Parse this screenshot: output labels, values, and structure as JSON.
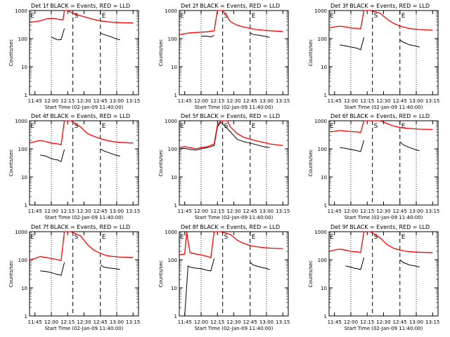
{
  "panel_defaults": {
    "ylabel": "Counts/sec",
    "xlabel": "Start Time (02-Jan-09 11:40:00)",
    "x_ticks": [
      "11:45",
      "12:00",
      "12:15",
      "12:30",
      "12:45",
      "13:00",
      "13:15"
    ],
    "y_ticks": [
      "1",
      "10",
      "100",
      "1000"
    ],
    "xlim_minutes": [
      0,
      100
    ],
    "ylim": [
      1,
      1000
    ],
    "y_scale": "log",
    "marker_labels": {
      "start": "S",
      "end": "E"
    },
    "colors": {
      "events": "#000000",
      "lld": "#ff0000"
    }
  },
  "chart_data": [
    {
      "type": "line",
      "title": "Det 1f BLACK = Events, RED = LLD",
      "start_marker": 12.33,
      "end_marker": 12.75,
      "dotted_lines": [
        12.0,
        13.0
      ],
      "series": [
        {
          "name": "BLACK = Events",
          "x": [
            11.75,
            11.83,
            11.92,
            11.98,
            12.0,
            12.05,
            12.1,
            12.15,
            12.2,
            null,
            12.75,
            12.8,
            12.9,
            12.98,
            13.05
          ],
          "y": [
            null,
            null,
            null,
            null,
            115,
            100,
            90,
            92,
            230,
            null,
            160,
            140,
            120,
            100,
            90
          ]
        },
        {
          "name": "RED = LLD",
          "x": [
            11.667,
            11.75,
            11.83,
            11.92,
            11.98,
            12.05,
            12.1,
            12.15,
            12.18,
            12.2,
            12.25,
            12.33,
            12.45,
            12.55,
            12.65,
            12.75,
            12.85,
            12.95,
            13.05,
            13.25
          ],
          "y": [
            380,
            400,
            430,
            500,
            520,
            520,
            490,
            480,
            470,
            1000,
            1000,
            800,
            650,
            560,
            480,
            430,
            400,
            380,
            370,
            360
          ]
        }
      ]
    },
    {
      "type": "line",
      "title": "Det 2f BLACK = Events, RED = LLD",
      "start_marker": 12.33,
      "end_marker": 12.75,
      "dotted_lines": [
        12.0,
        13.0
      ],
      "series": [
        {
          "name": "BLACK = Events",
          "x": [
            12.0,
            12.05,
            12.1,
            12.15,
            12.2,
            null,
            12.75,
            12.8,
            12.9,
            12.98,
            13.05
          ],
          "y": [
            120,
            125,
            120,
            115,
            130,
            null,
            160,
            140,
            130,
            120,
            110
          ]
        },
        {
          "name": "RED = LLD",
          "x": [
            11.667,
            11.75,
            11.83,
            11.92,
            12.0,
            12.1,
            12.2,
            12.25,
            12.3,
            12.33,
            12.4,
            12.45,
            12.55,
            12.65,
            12.75,
            12.85,
            12.95,
            13.05,
            13.25
          ],
          "y": [
            140,
            150,
            160,
            165,
            170,
            175,
            190,
            1000,
            1000,
            1000,
            600,
            400,
            300,
            260,
            230,
            210,
            200,
            190,
            180
          ]
        }
      ]
    },
    {
      "type": "line",
      "title": "Det 3f BLACK = Events, RED = LLD",
      "start_marker": 12.33,
      "end_marker": 12.75,
      "dotted_lines": [
        12.0,
        13.0
      ],
      "series": [
        {
          "name": "BLACK = Events",
          "x": [
            11.83,
            11.92,
            12.0,
            12.05,
            12.1,
            12.15,
            12.2,
            null,
            12.75,
            12.8,
            12.9,
            12.98,
            13.05
          ],
          "y": [
            60,
            55,
            50,
            48,
            45,
            40,
            110,
            null,
            90,
            75,
            60,
            55,
            50
          ]
        },
        {
          "name": "RED = LLD",
          "x": [
            11.667,
            11.75,
            11.83,
            11.92,
            12.0,
            12.1,
            12.15,
            12.2,
            12.25,
            12.3,
            12.45,
            12.55,
            12.65,
            12.75,
            12.85,
            12.95,
            13.05,
            13.25
          ],
          "y": [
            240,
            260,
            280,
            260,
            240,
            230,
            220,
            1000,
            1000,
            1000,
            800,
            500,
            350,
            280,
            240,
            220,
            210,
            200
          ]
        }
      ]
    },
    {
      "type": "line",
      "title": "Det 4f BLACK = Events, RED = LLD",
      "start_marker": 12.33,
      "end_marker": 12.75,
      "dotted_lines": [
        12.0,
        13.0
      ],
      "series": [
        {
          "name": "BLACK = Events",
          "x": [
            11.83,
            11.92,
            12.0,
            12.05,
            12.1,
            12.15,
            12.2,
            null,
            12.75,
            12.8,
            12.9,
            12.98,
            13.05
          ],
          "y": [
            60,
            55,
            45,
            42,
            40,
            35,
            95,
            null,
            100,
            85,
            70,
            60,
            55
          ]
        },
        {
          "name": "RED = LLD",
          "x": [
            11.667,
            11.75,
            11.83,
            11.92,
            12.0,
            12.1,
            12.15,
            12.2,
            12.25,
            12.3,
            12.45,
            12.55,
            12.65,
            12.75,
            12.85,
            12.95,
            13.05,
            13.25
          ],
          "y": [
            160,
            180,
            200,
            180,
            160,
            150,
            140,
            1000,
            1000,
            1000,
            600,
            350,
            280,
            230,
            200,
            180,
            170,
            160
          ]
        }
      ]
    },
    {
      "type": "line",
      "title": "Det 5f BLACK = Events, RED = LLD",
      "start_marker": 12.33,
      "end_marker": 12.75,
      "dotted_lines": [
        12.0,
        13.0
      ],
      "series": [
        {
          "name": "BLACK = Events",
          "x": [
            11.667,
            11.75,
            11.83,
            11.92,
            12.0,
            12.1,
            12.2,
            12.25,
            12.3,
            12.45,
            12.55,
            12.65,
            12.75,
            12.85,
            12.95,
            13.05
          ],
          "y": [
            100,
            105,
            95,
            90,
            100,
            110,
            130,
            600,
            900,
            400,
            220,
            180,
            160,
            140,
            120,
            110
          ]
        },
        {
          "name": "RED = LLD",
          "x": [
            11.667,
            11.75,
            11.83,
            11.92,
            12.0,
            12.1,
            12.2,
            12.25,
            12.3,
            12.4,
            12.45,
            12.55,
            12.65,
            12.75,
            12.85,
            12.95,
            13.05,
            13.25
          ],
          "y": [
            110,
            120,
            110,
            100,
            110,
            120,
            150,
            700,
            1000,
            1000,
            600,
            350,
            260,
            220,
            190,
            170,
            150,
            130
          ]
        }
      ]
    },
    {
      "type": "line",
      "title": "Det 6f BLACK = Events, RED = LLD",
      "start_marker": 12.33,
      "end_marker": 12.75,
      "dotted_lines": [
        12.0,
        13.0
      ],
      "series": [
        {
          "name": "BLACK = Events",
          "x": [
            11.83,
            11.92,
            12.0,
            12.05,
            12.1,
            12.15,
            12.2,
            null,
            12.75,
            12.8,
            12.9,
            12.98,
            13.05
          ],
          "y": [
            110,
            105,
            95,
            90,
            85,
            80,
            200,
            null,
            180,
            140,
            110,
            95,
            85
          ]
        },
        {
          "name": "RED = LLD",
          "x": [
            11.667,
            11.75,
            11.83,
            11.92,
            12.0,
            12.1,
            12.15,
            12.2,
            12.25,
            12.3,
            12.45,
            12.55,
            12.65,
            12.75,
            12.85,
            12.95,
            13.05,
            13.25
          ],
          "y": [
            400,
            420,
            450,
            430,
            410,
            400,
            380,
            1000,
            1000,
            1000,
            1000,
            800,
            650,
            580,
            540,
            520,
            500,
            490
          ]
        }
      ]
    },
    {
      "type": "line",
      "title": "Det 7f BLACK = Events, RED = LLD",
      "start_marker": 12.33,
      "end_marker": 12.75,
      "dotted_lines": [
        12.0,
        13.0
      ],
      "series": [
        {
          "name": "BLACK = Events",
          "x": [
            11.83,
            11.92,
            12.0,
            12.05,
            12.1,
            12.15,
            12.2,
            null,
            12.75,
            12.8,
            12.9,
            12.98,
            13.05
          ],
          "y": [
            40,
            38,
            35,
            32,
            30,
            28,
            80,
            null,
            65,
            55,
            50,
            48,
            45
          ]
        },
        {
          "name": "RED = LLD",
          "x": [
            11.667,
            11.75,
            11.83,
            11.92,
            12.0,
            12.1,
            12.15,
            12.2,
            12.25,
            12.3,
            12.45,
            12.55,
            12.65,
            12.75,
            12.85,
            12.95,
            13.05,
            13.25
          ],
          "y": [
            100,
            110,
            130,
            120,
            110,
            100,
            95,
            1000,
            1000,
            1000,
            700,
            350,
            220,
            170,
            140,
            130,
            125,
            120
          ]
        }
      ]
    },
    {
      "type": "line",
      "title": "Det 8f BLACK = Events, RED = LLD",
      "start_marker": 12.33,
      "end_marker": 12.75,
      "dotted_lines": [
        12.0,
        13.0
      ],
      "series": [
        {
          "name": "BLACK = Events",
          "x": [
            11.75,
            11.8,
            11.83,
            11.92,
            12.0,
            12.05,
            12.1,
            12.15,
            12.2,
            null,
            12.75,
            12.8,
            12.9,
            12.98,
            13.05
          ],
          "y": [
            1,
            60,
            55,
            50,
            48,
            45,
            42,
            40,
            110,
            null,
            80,
            65,
            55,
            50,
            45
          ]
        },
        {
          "name": "RED = LLD",
          "x": [
            11.667,
            11.75,
            11.78,
            11.83,
            11.92,
            12.0,
            12.05,
            12.1,
            12.15,
            12.2,
            12.25,
            12.3,
            12.45,
            12.55,
            12.65,
            12.75,
            12.85,
            12.95,
            13.05,
            13.25
          ],
          "y": [
            150,
            160,
            1000,
            180,
            160,
            150,
            140,
            130,
            120,
            1000,
            1000,
            1000,
            800,
            500,
            380,
            320,
            290,
            270,
            260,
            250
          ]
        }
      ]
    },
    {
      "type": "line",
      "title": "Det 9f BLACK = Events, RED = LLD",
      "start_marker": 12.33,
      "end_marker": 12.75,
      "dotted_lines": [
        12.0,
        13.0
      ],
      "series": [
        {
          "name": "BLACK = Events",
          "x": [
            11.92,
            12.0,
            12.05,
            12.1,
            12.15,
            12.2,
            null,
            12.75,
            12.8,
            12.9,
            12.98,
            13.05
          ],
          "y": [
            60,
            55,
            50,
            48,
            45,
            120,
            null,
            100,
            80,
            65,
            60,
            55
          ]
        },
        {
          "name": "RED = LLD",
          "x": [
            11.667,
            11.75,
            11.83,
            11.92,
            12.0,
            12.1,
            12.15,
            12.2,
            12.25,
            12.3,
            12.45,
            12.55,
            12.65,
            12.75,
            12.85,
            12.95,
            13.05,
            13.25
          ],
          "y": [
            200,
            220,
            240,
            220,
            200,
            190,
            180,
            1000,
            1000,
            1000,
            600,
            350,
            260,
            220,
            200,
            190,
            185,
            180
          ]
        }
      ]
    }
  ]
}
